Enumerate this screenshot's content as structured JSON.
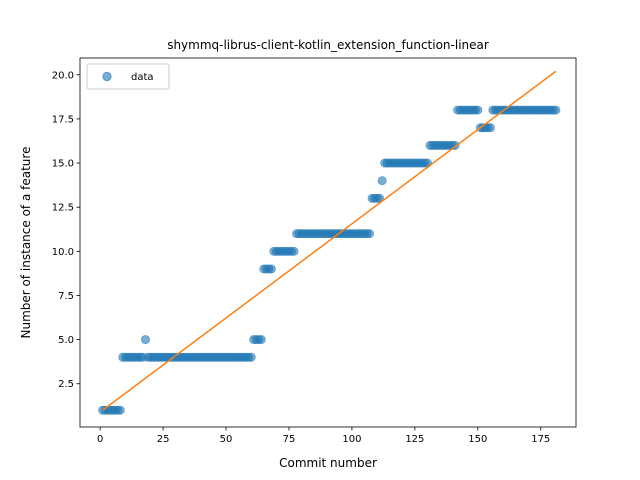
{
  "chart_data": {
    "type": "scatter",
    "title": "shymmq-librus-client-kotlin_extension_function-linear",
    "xlabel": "Commit number",
    "ylabel": "Number of instance of a feature",
    "xlim": [
      -8,
      189
    ],
    "ylim": [
      0.05,
      20.95
    ],
    "xticks": [
      0,
      25,
      50,
      75,
      100,
      125,
      150,
      175
    ],
    "yticks": [
      2.5,
      5.0,
      7.5,
      10.0,
      12.5,
      15.0,
      17.5,
      20.0
    ],
    "ytick_labels": [
      "2.5",
      "5.0",
      "7.5",
      "10.0",
      "12.5",
      "15.0",
      "17.5",
      "20.0"
    ],
    "grid": false,
    "legend": {
      "position": "top-left",
      "entries": [
        "data"
      ]
    },
    "colors": {
      "scatter": "#1f77b4",
      "fit": "#ff7f0e"
    },
    "series": [
      {
        "name": "data",
        "kind": "scatter",
        "points": [
          [
            1,
            1
          ],
          [
            2,
            1
          ],
          [
            3,
            1
          ],
          [
            4,
            1
          ],
          [
            5,
            1
          ],
          [
            6,
            1
          ],
          [
            7,
            1
          ],
          [
            8,
            1
          ],
          [
            9,
            4
          ],
          [
            10,
            4
          ],
          [
            11,
            4
          ],
          [
            12,
            4
          ],
          [
            13,
            4
          ],
          [
            14,
            4
          ],
          [
            15,
            4
          ],
          [
            16,
            4
          ],
          [
            17,
            4
          ],
          [
            18,
            5
          ],
          [
            19,
            4
          ],
          [
            20,
            4
          ],
          [
            21,
            4
          ],
          [
            22,
            4
          ],
          [
            23,
            4
          ],
          [
            24,
            4
          ],
          [
            25,
            4
          ],
          [
            26,
            4
          ],
          [
            27,
            4
          ],
          [
            28,
            4
          ],
          [
            29,
            4
          ],
          [
            30,
            4
          ],
          [
            31,
            4
          ],
          [
            32,
            4
          ],
          [
            33,
            4
          ],
          [
            34,
            4
          ],
          [
            35,
            4
          ],
          [
            36,
            4
          ],
          [
            37,
            4
          ],
          [
            38,
            4
          ],
          [
            39,
            4
          ],
          [
            40,
            4
          ],
          [
            41,
            4
          ],
          [
            42,
            4
          ],
          [
            43,
            4
          ],
          [
            44,
            4
          ],
          [
            45,
            4
          ],
          [
            46,
            4
          ],
          [
            47,
            4
          ],
          [
            48,
            4
          ],
          [
            49,
            4
          ],
          [
            50,
            4
          ],
          [
            51,
            4
          ],
          [
            52,
            4
          ],
          [
            53,
            4
          ],
          [
            54,
            4
          ],
          [
            55,
            4
          ],
          [
            56,
            4
          ],
          [
            57,
            4
          ],
          [
            58,
            4
          ],
          [
            59,
            4
          ],
          [
            60,
            4
          ],
          [
            61,
            5
          ],
          [
            62,
            5
          ],
          [
            63,
            5
          ],
          [
            64,
            5
          ],
          [
            65,
            9
          ],
          [
            66,
            9
          ],
          [
            67,
            9
          ],
          [
            68,
            9
          ],
          [
            69,
            10
          ],
          [
            70,
            10
          ],
          [
            71,
            10
          ],
          [
            72,
            10
          ],
          [
            73,
            10
          ],
          [
            74,
            10
          ],
          [
            75,
            10
          ],
          [
            76,
            10
          ],
          [
            77,
            10
          ],
          [
            78,
            11
          ],
          [
            79,
            11
          ],
          [
            80,
            11
          ],
          [
            81,
            11
          ],
          [
            82,
            11
          ],
          [
            83,
            11
          ],
          [
            84,
            11
          ],
          [
            85,
            11
          ],
          [
            86,
            11
          ],
          [
            87,
            11
          ],
          [
            88,
            11
          ],
          [
            89,
            11
          ],
          [
            90,
            11
          ],
          [
            91,
            11
          ],
          [
            92,
            11
          ],
          [
            93,
            11
          ],
          [
            94,
            11
          ],
          [
            95,
            11
          ],
          [
            96,
            11
          ],
          [
            97,
            11
          ],
          [
            98,
            11
          ],
          [
            99,
            11
          ],
          [
            100,
            11
          ],
          [
            101,
            11
          ],
          [
            102,
            11
          ],
          [
            103,
            11
          ],
          [
            104,
            11
          ],
          [
            105,
            11
          ],
          [
            106,
            11
          ],
          [
            107,
            11
          ],
          [
            108,
            13
          ],
          [
            109,
            13
          ],
          [
            110,
            13
          ],
          [
            111,
            13
          ],
          [
            112,
            14
          ],
          [
            113,
            15
          ],
          [
            114,
            15
          ],
          [
            115,
            15
          ],
          [
            116,
            15
          ],
          [
            117,
            15
          ],
          [
            118,
            15
          ],
          [
            119,
            15
          ],
          [
            120,
            15
          ],
          [
            121,
            15
          ],
          [
            122,
            15
          ],
          [
            123,
            15
          ],
          [
            124,
            15
          ],
          [
            125,
            15
          ],
          [
            126,
            15
          ],
          [
            127,
            15
          ],
          [
            128,
            15
          ],
          [
            129,
            15
          ],
          [
            130,
            15
          ],
          [
            131,
            16
          ],
          [
            132,
            16
          ],
          [
            133,
            16
          ],
          [
            134,
            16
          ],
          [
            135,
            16
          ],
          [
            136,
            16
          ],
          [
            137,
            16
          ],
          [
            138,
            16
          ],
          [
            139,
            16
          ],
          [
            140,
            16
          ],
          [
            141,
            16
          ],
          [
            142,
            18
          ],
          [
            143,
            18
          ],
          [
            144,
            18
          ],
          [
            145,
            18
          ],
          [
            146,
            18
          ],
          [
            147,
            18
          ],
          [
            148,
            18
          ],
          [
            149,
            18
          ],
          [
            150,
            18
          ],
          [
            151,
            17
          ],
          [
            152,
            17
          ],
          [
            153,
            17
          ],
          [
            154,
            17
          ],
          [
            155,
            17
          ],
          [
            156,
            18
          ],
          [
            157,
            18
          ],
          [
            158,
            18
          ],
          [
            159,
            18
          ],
          [
            160,
            18
          ],
          [
            161,
            18
          ],
          [
            162,
            18
          ],
          [
            163,
            18
          ],
          [
            164,
            18
          ],
          [
            165,
            18
          ],
          [
            166,
            18
          ],
          [
            167,
            18
          ],
          [
            168,
            18
          ],
          [
            169,
            18
          ],
          [
            170,
            18
          ],
          [
            171,
            18
          ],
          [
            172,
            18
          ],
          [
            173,
            18
          ],
          [
            174,
            18
          ],
          [
            175,
            18
          ],
          [
            176,
            18
          ],
          [
            177,
            18
          ],
          [
            178,
            18
          ],
          [
            179,
            18
          ],
          [
            180,
            18
          ],
          [
            181,
            18
          ]
        ]
      },
      {
        "kind": "line",
        "points": [
          [
            1,
            1.0
          ],
          [
            181,
            20.2
          ]
        ]
      }
    ]
  }
}
